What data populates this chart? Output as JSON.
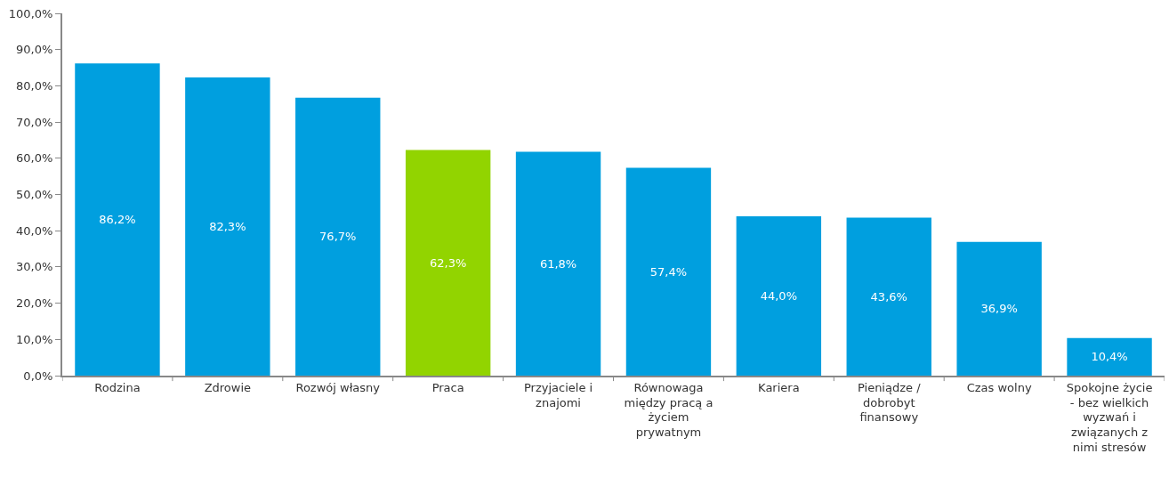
{
  "chart_data": {
    "type": "bar",
    "categories": [
      "Rodzina",
      "Zdrowie",
      "Rozwój własny",
      "Praca",
      "Przyjaciele i znajomi",
      "Równowaga między pracą a życiem prywatnym",
      "Kariera",
      "Pieniądze / dobrobyt finansowy",
      "Czas wolny",
      "Spokojne życie - bez wielkich wyzwań i związanych z nimi stresów"
    ],
    "values": [
      86.2,
      82.3,
      76.7,
      62.3,
      61.8,
      57.4,
      44.0,
      43.6,
      36.9,
      10.4
    ],
    "colors": [
      "#009fdf",
      "#009fdf",
      "#009fdf",
      "#92d400",
      "#009fdf",
      "#009fdf",
      "#009fdf",
      "#009fdf",
      "#009fdf",
      "#009fdf"
    ],
    "value_labels": [
      "86,2%",
      "82,3%",
      "76,7%",
      "62,3%",
      "61,8%",
      "57,4%",
      "44,0%",
      "43,6%",
      "36,9%",
      "10,4%"
    ],
    "ylim": [
      0,
      100
    ],
    "yticks": [
      {
        "value": 0,
        "label": "0,0%"
      },
      {
        "value": 10,
        "label": "10,0%"
      },
      {
        "value": 20,
        "label": "20,0%"
      },
      {
        "value": 30,
        "label": "30,0%"
      },
      {
        "value": 40,
        "label": "40,0%"
      },
      {
        "value": 50,
        "label": "50,0%"
      },
      {
        "value": 60,
        "label": "60,0%"
      },
      {
        "value": 70,
        "label": "70,0%"
      },
      {
        "value": 80,
        "label": "80,0%"
      },
      {
        "value": 90,
        "label": "90,0%"
      },
      {
        "value": 100,
        "label": "100,0%"
      }
    ],
    "legend": false
  }
}
